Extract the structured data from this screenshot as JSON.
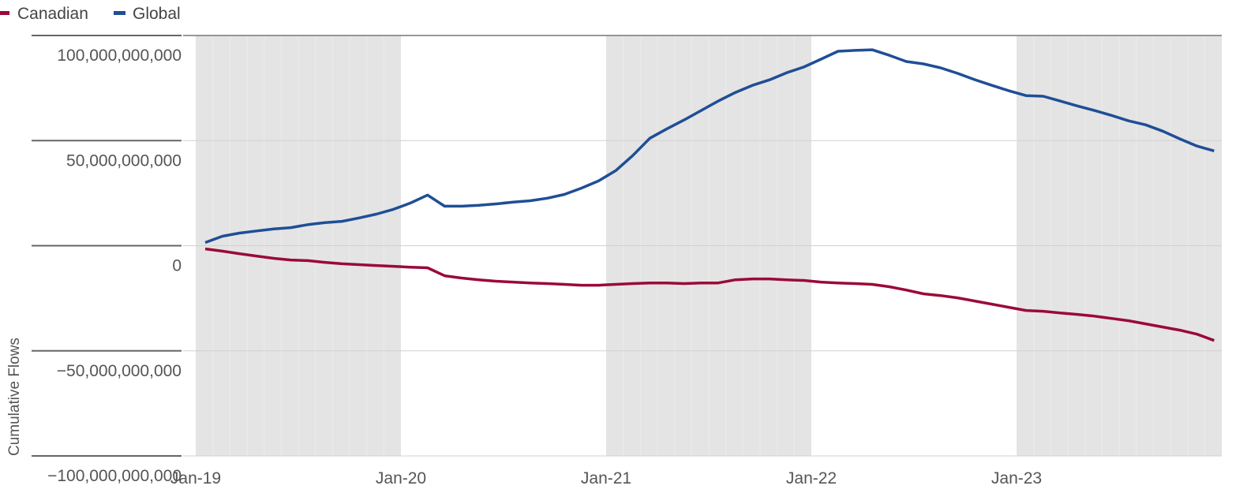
{
  "chart_data": {
    "type": "line",
    "title": "",
    "xlabel": "",
    "ylabel": "Cumulative Flows",
    "ylim": [
      -100000000000,
      100000000000
    ],
    "yticks": [
      100000000000,
      50000000000,
      0,
      -50000000000,
      -100000000000
    ],
    "ytick_labels": [
      "100,000,000,000",
      "50,000,000,000",
      "0",
      "−50,000,000,000",
      "−100,000,000,000"
    ],
    "xtick_labels": [
      "Jan-19",
      "Jan-20",
      "Jan-21",
      "Jan-22",
      "Jan-23"
    ],
    "grid": true,
    "legend_position": "top-left",
    "shaded_years": [
      "2019",
      "2021",
      "2023"
    ],
    "x": [
      "2019-01",
      "2019-02",
      "2019-03",
      "2019-04",
      "2019-05",
      "2019-06",
      "2019-07",
      "2019-08",
      "2019-09",
      "2019-10",
      "2019-11",
      "2019-12",
      "2020-01",
      "2020-02",
      "2020-03",
      "2020-04",
      "2020-05",
      "2020-06",
      "2020-07",
      "2020-08",
      "2020-09",
      "2020-10",
      "2020-11",
      "2020-12",
      "2021-01",
      "2021-02",
      "2021-03",
      "2021-04",
      "2021-05",
      "2021-06",
      "2021-07",
      "2021-08",
      "2021-09",
      "2021-10",
      "2021-11",
      "2021-12",
      "2022-01",
      "2022-02",
      "2022-03",
      "2022-04",
      "2022-05",
      "2022-06",
      "2022-07",
      "2022-08",
      "2022-09",
      "2022-10",
      "2022-11",
      "2022-12",
      "2023-01",
      "2023-02",
      "2023-03",
      "2023-04",
      "2023-05",
      "2023-06",
      "2023-07",
      "2023-08",
      "2023-09",
      "2023-10",
      "2023-11",
      "2023-12"
    ],
    "value_unit_multiplier": 1000000000,
    "series": [
      {
        "name": "Canadian",
        "color": "#9b0a37",
        "values": [
          -1.5,
          -2.6,
          -3.8,
          -4.9,
          -6,
          -6.8,
          -7.1,
          -7.9,
          -8.6,
          -9,
          -9.4,
          -9.8,
          -10.2,
          -10.5,
          -14.3,
          -15.4,
          -16.2,
          -16.9,
          -17.3,
          -17.7,
          -18,
          -18.4,
          -18.8,
          -18.8,
          -18.4,
          -18,
          -17.7,
          -17.7,
          -18,
          -17.7,
          -17.7,
          -16.2,
          -15.8,
          -15.8,
          -16.2,
          -16.5,
          -17.3,
          -17.7,
          -18,
          -18.4,
          -19.5,
          -21.1,
          -22.9,
          -23.7,
          -24.8,
          -26.3,
          -27.8,
          -29.3,
          -30.8,
          -31.2,
          -32,
          -32.7,
          -33.5,
          -34.6,
          -35.7,
          -37.2,
          -38.7,
          -40.2,
          -42.1,
          -45.1
        ]
      },
      {
        "name": "Global",
        "color": "#1f4e96",
        "values": [
          1.5,
          4.5,
          6,
          7,
          8,
          8.6,
          10,
          11,
          11.6,
          13.2,
          15,
          17.3,
          20.3,
          24.1,
          18.8,
          18.8,
          19.2,
          19.9,
          20.7,
          21.4,
          22.6,
          24.4,
          27.4,
          30.8,
          35.7,
          42.9,
          51.1,
          55.6,
          59.8,
          64.3,
          68.8,
          72.9,
          76.3,
          78.9,
          82.3,
          85,
          88.7,
          92.5,
          92.9,
          93.2,
          90.6,
          87.6,
          86.5,
          84.6,
          82,
          79,
          76.3,
          73.7,
          71.4,
          71.1,
          68.8,
          66.5,
          64.3,
          62,
          59.4,
          57.5,
          54.5,
          50.8,
          47.4,
          45.1
        ]
      }
    ]
  },
  "legend": {
    "items": [
      {
        "label": "Canadian",
        "color": "#9b0a37"
      },
      {
        "label": "Global",
        "color": "#1f4e96"
      }
    ]
  }
}
